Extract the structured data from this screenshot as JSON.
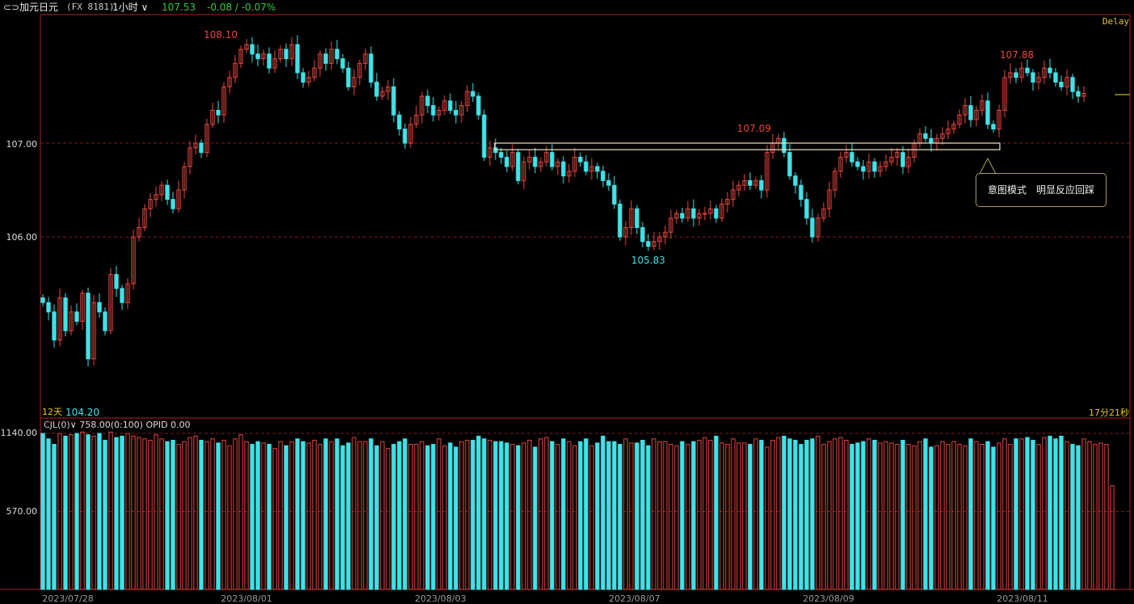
{
  "header": {
    "icon": "link-icon",
    "icon_glyph": "⊂⊃",
    "symbol_name": "加元日元",
    "symbol_code": "(FX 8181)",
    "period": "1小时",
    "last_price": "107.53",
    "change": "-0.08 / -0.07%"
  },
  "colors": {
    "up": "#e8473f",
    "down": "#3ee3e8",
    "grid": "#7a1e1e",
    "border": "#b02020",
    "annotation_box": "#f2e6c0",
    "last_price_marker": "#e6e62a"
  },
  "status": {
    "delay": "Delay",
    "bars": "12天",
    "countdown": "17分21秒"
  },
  "annotation": {
    "text": "意图模式　明显反应回踩"
  },
  "price_axis": {
    "ticks": [
      "107.00",
      "106.00"
    ]
  },
  "volume_axis": {
    "ticks": [
      "1140.00",
      "570.00"
    ]
  },
  "volume_header": {
    "indicator": "CJL(0)",
    "value": "758.00(0:100)",
    "opid": "OPID 0.00"
  },
  "chart_data": [
    {
      "type": "candlestick",
      "x_labels": [
        "2023/07/28",
        "2023/08/01",
        "2023/08/03",
        "2023/08/07",
        "2023/08/09",
        "2023/08/11"
      ],
      "ylim": [
        104.2,
        108.3
      ],
      "price_labels": [
        {
          "text": "108.10",
          "kind": "high",
          "value": 108.1
        },
        {
          "text": "104.20",
          "kind": "low",
          "value": 104.2
        },
        {
          "text": "105.83",
          "kind": "low",
          "value": 105.83
        },
        {
          "text": "107.09",
          "kind": "high",
          "value": 107.09
        },
        {
          "text": "107.88",
          "kind": "high",
          "value": 107.88
        }
      ],
      "zone": {
        "from": 106.93,
        "to": 107.0
      },
      "closes": [
        105.3,
        105.2,
        104.9,
        105.35,
        105.0,
        105.2,
        105.1,
        105.4,
        104.7,
        105.3,
        105.2,
        105.0,
        105.6,
        105.45,
        105.3,
        105.5,
        106.0,
        106.1,
        106.3,
        106.4,
        106.45,
        106.55,
        106.4,
        106.3,
        106.5,
        106.75,
        106.95,
        107.0,
        106.9,
        107.2,
        107.35,
        107.3,
        107.6,
        107.7,
        107.85,
        108.0,
        108.05,
        107.95,
        107.9,
        107.95,
        107.8,
        107.9,
        108.0,
        107.9,
        108.05,
        107.75,
        107.65,
        107.7,
        107.8,
        107.95,
        107.85,
        108.0,
        107.9,
        107.8,
        107.6,
        107.7,
        107.85,
        107.95,
        107.65,
        107.5,
        107.55,
        107.6,
        107.3,
        107.15,
        107.0,
        107.2,
        107.3,
        107.5,
        107.4,
        107.3,
        107.35,
        107.45,
        107.35,
        107.3,
        107.4,
        107.55,
        107.5,
        107.3,
        106.85,
        106.95,
        106.9,
        106.85,
        106.75,
        106.9,
        106.6,
        106.8,
        106.85,
        106.75,
        106.8,
        106.9,
        106.75,
        106.8,
        106.65,
        106.7,
        106.85,
        106.8,
        106.7,
        106.75,
        106.7,
        106.6,
        106.55,
        106.35,
        106.0,
        106.1,
        106.3,
        106.1,
        105.95,
        105.9,
        105.95,
        106.0,
        106.05,
        106.2,
        106.25,
        106.2,
        106.3,
        106.2,
        106.25,
        106.25,
        106.3,
        106.2,
        106.35,
        106.4,
        106.5,
        106.55,
        106.6,
        106.55,
        106.6,
        106.5,
        106.9,
        107.0,
        107.05,
        106.9,
        106.65,
        106.55,
        106.4,
        106.2,
        106.0,
        106.2,
        106.3,
        106.5,
        106.7,
        106.85,
        106.9,
        106.8,
        106.75,
        106.7,
        106.8,
        106.7,
        106.75,
        106.8,
        106.85,
        106.9,
        106.75,
        106.85,
        107.0,
        107.1,
        107.05,
        107.0,
        107.05,
        107.1,
        107.15,
        107.2,
        107.3,
        107.4,
        107.25,
        107.35,
        107.45,
        107.2,
        107.15,
        107.35,
        107.7,
        107.75,
        107.7,
        107.8,
        107.75,
        107.65,
        107.7,
        107.8,
        107.75,
        107.65,
        107.6,
        107.7,
        107.55,
        107.5,
        107.53
      ]
    },
    {
      "type": "bar",
      "series": "volume",
      "ylim": [
        0,
        1140
      ],
      "values": [
        1140,
        1100,
        1060,
        1140,
        1120,
        1130,
        1140,
        1150,
        1130,
        1120,
        1140,
        1090,
        1150,
        1110,
        1120,
        1140,
        1120,
        1110,
        1100,
        1090,
        1130,
        1100,
        1080,
        1090,
        1060,
        1080,
        1110,
        1120,
        1090,
        1080,
        1100,
        1070,
        1090,
        1050,
        1100,
        1130,
        1080,
        1060,
        1080,
        1070,
        1060,
        1030,
        1080,
        1050,
        1080,
        1100,
        1080,
        1070,
        1090,
        1060,
        1100,
        1080,
        1100,
        1050,
        1070,
        1110,
        1080,
        1080,
        1100,
        1050,
        1080,
        1030,
        1060,
        1080,
        1100,
        1060,
        1060,
        1080,
        1050,
        1060,
        1100,
        1050,
        1070,
        1040,
        1080,
        1090,
        1090,
        1120,
        1100,
        1090,
        1080,
        1080,
        1070,
        1060,
        1050,
        1070,
        1090,
        1040,
        1100,
        1110,
        1080,
        1060,
        1100,
        1080,
        1050,
        1080,
        1100,
        1050,
        1070,
        1120,
        1080,
        1080,
        1060,
        1100,
        1070,
        1070,
        1090,
        1050,
        1100,
        1080,
        1080,
        1060,
        1050,
        1080,
        1060,
        1080,
        1090,
        1110,
        1090,
        1120,
        1070,
        1060,
        1100,
        1070,
        1070,
        1060,
        1100,
        1090,
        1040,
        1090,
        1110,
        1120,
        1100,
        1090,
        1060,
        1090,
        1100,
        1120,
        1060,
        1080,
        1100,
        1110,
        1090,
        1060,
        1070,
        1080,
        1100,
        1090,
        1070,
        1080,
        1070,
        1060,
        1090,
        1060,
        1050,
        1080,
        1100,
        1040,
        1050,
        1080,
        1060,
        1080,
        1060,
        1050,
        1100,
        1080,
        1060,
        1080,
        1040,
        1070,
        1100,
        1060,
        1100,
        1100,
        1110,
        1090,
        1060,
        1110,
        1120,
        1100,
        1120,
        1080,
        1060,
        1050,
        1100,
        1080,
        1060,
        1070,
        1060,
        758
      ]
    }
  ]
}
